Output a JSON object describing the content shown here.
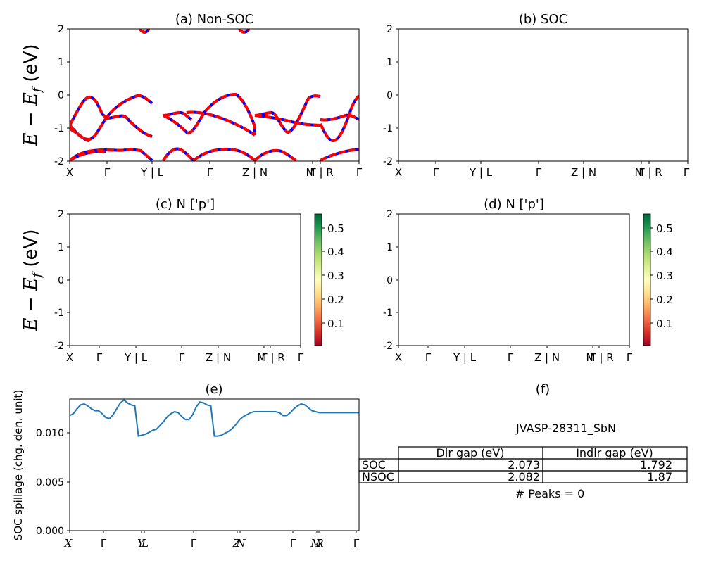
{
  "chart_data": [
    {
      "id": "a",
      "type": "line",
      "title": "(a) Non-SOC",
      "ylabel": "E − E_f (eV)",
      "ylim": [
        -2,
        2
      ],
      "yticks": [
        "-2",
        "-1",
        "0",
        "1",
        "2"
      ],
      "xticks": [
        "X",
        "Γ",
        "Y | L",
        "Γ",
        "Z | N",
        "M",
        "Γ | R",
        "Γ"
      ],
      "series_colors": [
        "#0000ff",
        "#ff0000"
      ],
      "line_style": "blue solid overlaid with red dashed"
    },
    {
      "id": "b",
      "type": "line",
      "title": "(b) SOC",
      "ylim": [
        -2,
        2
      ],
      "yticks": [
        "-2",
        "-1",
        "0",
        "1",
        "2"
      ],
      "xticks": [
        "X",
        "Γ",
        "Y | L",
        "Γ",
        "Z | N",
        "M",
        "Γ | R",
        "Γ"
      ],
      "series_colors": [
        "#0000ff"
      ]
    },
    {
      "id": "c",
      "type": "scatter",
      "title": "(c)  N ['p']",
      "ylabel": "E − E_f (eV)",
      "ylim": [
        -2,
        2
      ],
      "yticks": [
        "-2",
        "-1",
        "0",
        "1",
        "2"
      ],
      "xticks": [
        "X",
        "Γ",
        "Y | L",
        "Γ",
        "Z | N",
        "M",
        "Γ | R",
        "Γ"
      ],
      "colorbar": {
        "ticks": [
          "0.1",
          "0.2",
          "0.3",
          "0.4",
          "0.5"
        ],
        "range": [
          0.0,
          0.56
        ],
        "colormap": "RdYlGn"
      }
    },
    {
      "id": "d",
      "type": "scatter",
      "title": "(d) N ['p']",
      "ylim": [
        -2,
        2
      ],
      "yticks": [
        "-2",
        "-1",
        "0",
        "1",
        "2"
      ],
      "xticks": [
        "X",
        "Γ",
        "Y | L",
        "Γ",
        "Z | N",
        "M",
        "Γ | R",
        "Γ"
      ],
      "colorbar": {
        "ticks": [
          "0.1",
          "0.2",
          "0.3",
          "0.4",
          "0.5"
        ],
        "range": [
          0.0,
          0.56
        ],
        "colormap": "RdYlGn"
      }
    },
    {
      "id": "e",
      "type": "line",
      "title": "(e)",
      "ylabel": "SOC spillage (chg. den. unit)",
      "ylim": [
        0,
        0.0135
      ],
      "yticks": [
        "0.000",
        "0.005",
        "0.010"
      ],
      "xticks": [
        "X",
        "Γ",
        "Y",
        "L",
        "Γ",
        "Z",
        "N",
        "Γ",
        "M",
        "R",
        "Γ"
      ],
      "series": [
        {
          "color": "#1f77b4",
          "x": [
            0,
            0.05,
            0.1,
            0.15,
            0.2,
            0.25,
            0.3,
            0.35,
            0.4,
            0.45,
            0.5,
            0.55,
            0.6,
            0.65,
            0.7,
            0.75,
            0.8,
            0.85,
            0.9,
            0.95,
            1.0,
            1.05,
            1.1,
            1.15,
            1.2,
            1.25,
            1.3,
            1.35,
            1.4,
            1.45,
            1.5,
            1.55,
            1.6,
            1.65,
            1.7,
            1.75,
            1.8,
            1.85,
            1.9,
            1.95,
            2.0,
            2.05,
            2.1,
            2.15,
            2.2,
            2.25,
            2.3,
            2.35,
            2.4,
            2.45,
            2.5,
            2.55,
            2.6,
            2.65,
            2.7,
            2.75,
            2.8,
            2.85,
            2.9,
            2.95,
            3.0,
            3.05,
            3.1,
            3.15,
            3.2,
            3.25,
            3.3,
            3.35,
            3.4,
            3.45,
            3.5,
            3.55,
            3.6,
            3.65,
            3.7,
            3.75,
            3.8,
            3.85,
            3.9,
            3.95,
            4.0
          ],
          "y": [
            0.0118,
            0.012,
            0.0125,
            0.0129,
            0.013,
            0.0128,
            0.0125,
            0.0123,
            0.0123,
            0.012,
            0.0116,
            0.0115,
            0.0119,
            0.0125,
            0.0131,
            0.0134,
            0.0131,
            0.0129,
            0.0128,
            0.0097,
            0.0098,
            0.0099,
            0.0101,
            0.0103,
            0.0104,
            0.0108,
            0.0112,
            0.0117,
            0.012,
            0.0122,
            0.0121,
            0.0117,
            0.0114,
            0.0114,
            0.0119,
            0.0127,
            0.0132,
            0.0131,
            0.0129,
            0.0128,
            0.0097,
            0.0097,
            0.0098,
            0.01,
            0.0102,
            0.0105,
            0.0109,
            0.0114,
            0.0117,
            0.0119,
            0.0121,
            0.0122,
            0.0122,
            0.0122,
            0.0122,
            0.0122,
            0.0122,
            0.0122,
            0.0121,
            0.0118,
            0.0118,
            0.0121,
            0.0125,
            0.0128,
            0.013,
            0.0129,
            0.0126,
            0.0123,
            0.0122,
            0.0121,
            0.0121,
            0.0121,
            0.0121,
            0.0121,
            0.0121,
            0.0121,
            0.0121,
            0.0121,
            0.0121,
            0.0121,
            0.0121
          ]
        }
      ]
    },
    {
      "id": "f",
      "type": "table",
      "title": "(f)",
      "caption": "JVASP-28311_SbN",
      "columns": [
        "",
        "Dir gap (eV)",
        "Indir gap (eV)"
      ],
      "rows": [
        [
          "SOC",
          "2.073",
          "1.792"
        ],
        [
          "NSOC",
          "2.082",
          "1.87"
        ]
      ],
      "footer": "# Peaks = 0"
    }
  ]
}
